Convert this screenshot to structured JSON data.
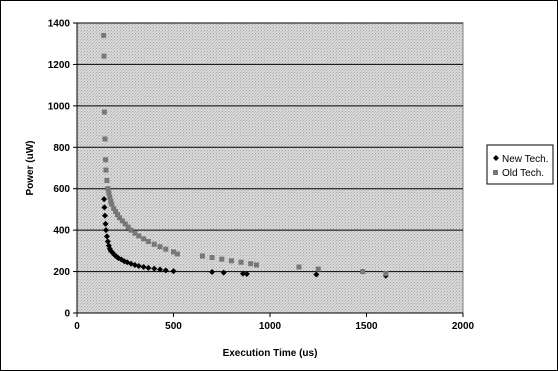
{
  "chart_data": {
    "type": "scatter",
    "title": "",
    "xlabel": "Execution Time (us)",
    "ylabel": "Power (uW)",
    "xlim": [
      0,
      2000
    ],
    "ylim": [
      0,
      1400
    ],
    "xticks": [
      0,
      500,
      1000,
      1500,
      2000
    ],
    "yticks": [
      0,
      200,
      400,
      600,
      800,
      1000,
      1200,
      1400
    ],
    "x_tick_labels": [
      "0",
      "500",
      "1000",
      "1500",
      "2000"
    ],
    "y_tick_labels": [
      "0",
      "200",
      "400",
      "600",
      "800",
      "1000",
      "1200",
      "1400"
    ],
    "grid": true,
    "legend_position": "right",
    "series": [
      {
        "name": "New Tech.",
        "marker": "diamond",
        "color": "#000000",
        "points": [
          [
            140,
            550
          ],
          [
            142,
            510
          ],
          [
            145,
            470
          ],
          [
            148,
            430
          ],
          [
            150,
            400
          ],
          [
            155,
            370
          ],
          [
            160,
            345
          ],
          [
            165,
            325
          ],
          [
            170,
            310
          ],
          [
            175,
            300
          ],
          [
            185,
            290
          ],
          [
            195,
            280
          ],
          [
            205,
            272
          ],
          [
            215,
            265
          ],
          [
            230,
            258
          ],
          [
            245,
            250
          ],
          [
            260,
            245
          ],
          [
            280,
            238
          ],
          [
            300,
            232
          ],
          [
            320,
            227
          ],
          [
            345,
            222
          ],
          [
            370,
            218
          ],
          [
            400,
            214
          ],
          [
            430,
            210
          ],
          [
            460,
            206
          ],
          [
            500,
            202
          ],
          [
            700,
            198
          ],
          [
            760,
            195
          ],
          [
            860,
            190
          ],
          [
            880,
            188
          ],
          [
            1240,
            186
          ],
          [
            1600,
            180
          ]
        ]
      },
      {
        "name": "Old Tech.",
        "marker": "square",
        "color": "#777777",
        "points": [
          [
            138,
            1340
          ],
          [
            140,
            1240
          ],
          [
            142,
            970
          ],
          [
            145,
            840
          ],
          [
            148,
            740
          ],
          [
            150,
            690
          ],
          [
            155,
            640
          ],
          [
            160,
            600
          ],
          [
            165,
            580
          ],
          [
            170,
            560
          ],
          [
            175,
            540
          ],
          [
            180,
            525
          ],
          [
            190,
            505
          ],
          [
            200,
            490
          ],
          [
            210,
            475
          ],
          [
            220,
            460
          ],
          [
            235,
            445
          ],
          [
            250,
            430
          ],
          [
            265,
            415
          ],
          [
            280,
            400
          ],
          [
            300,
            385
          ],
          [
            320,
            372
          ],
          [
            345,
            358
          ],
          [
            370,
            345
          ],
          [
            400,
            332
          ],
          [
            430,
            320
          ],
          [
            460,
            308
          ],
          [
            500,
            295
          ],
          [
            520,
            285
          ],
          [
            650,
            275
          ],
          [
            700,
            268
          ],
          [
            750,
            260
          ],
          [
            800,
            252
          ],
          [
            850,
            245
          ],
          [
            900,
            238
          ],
          [
            930,
            232
          ],
          [
            1150,
            222
          ],
          [
            1250,
            212
          ],
          [
            1480,
            200
          ],
          [
            1600,
            190
          ]
        ]
      }
    ]
  }
}
